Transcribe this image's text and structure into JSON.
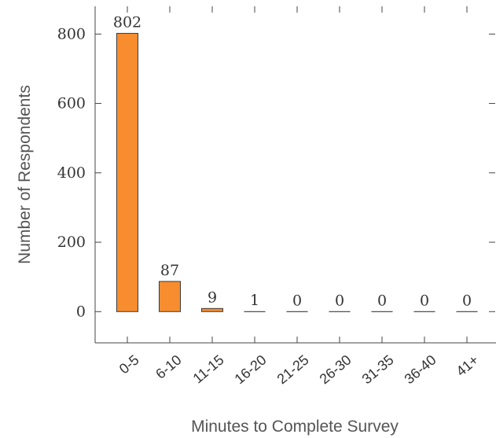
{
  "chart_data": {
    "type": "bar",
    "categories": [
      "0-5",
      "6-10",
      "11-15",
      "16-20",
      "21-25",
      "26-30",
      "31-35",
      "36-40",
      "41+"
    ],
    "values": [
      802,
      87,
      9,
      1,
      0,
      0,
      0,
      0,
      0
    ],
    "data_labels": [
      "802",
      "87",
      "9",
      "1",
      "0",
      "0",
      "0",
      "0",
      "0"
    ],
    "xlabel": "Minutes to Complete Survey",
    "ylabel": "Number of Respondents",
    "ylim": [
      -90,
      880
    ],
    "yticks": [
      0,
      200,
      400,
      600,
      800
    ],
    "ytick_labels": [
      "0",
      "200",
      "400",
      "600",
      "800"
    ],
    "grid": false,
    "bar_color": "#f78d2f",
    "bar_edge_color": "#3a3a3a"
  }
}
